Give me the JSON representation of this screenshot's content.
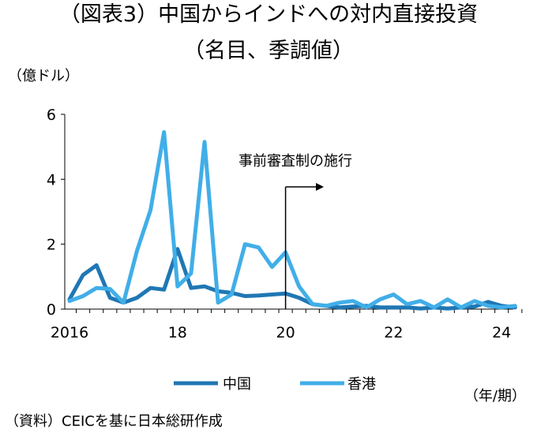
{
  "title_line1": "（図表3）中国からインドへの対内直接投資",
  "title_line2": "（名目、季調値）",
  "unit_label": "（億ドル）",
  "period_label": "（年/期）",
  "source_note": "（資料）CEICを基に日本総研作成",
  "chart_data": {
    "type": "line",
    "x": [
      "2016Q1",
      "2016Q2",
      "2016Q3",
      "2016Q4",
      "2017Q1",
      "2017Q2",
      "2017Q3",
      "2017Q4",
      "2018Q1",
      "2018Q2",
      "2018Q3",
      "2018Q4",
      "2019Q1",
      "2019Q2",
      "2019Q3",
      "2019Q4",
      "2020Q1",
      "2020Q2",
      "2020Q3",
      "2020Q4",
      "2021Q1",
      "2021Q2",
      "2021Q3",
      "2021Q4",
      "2022Q1",
      "2022Q2",
      "2022Q3",
      "2022Q4",
      "2023Q1",
      "2023Q2",
      "2023Q3",
      "2023Q4",
      "2024Q1",
      "2024Q2"
    ],
    "x_ticks": [
      {
        "x": "2016Q1",
        "label": "2016"
      },
      {
        "x": "2018Q1",
        "label": "18"
      },
      {
        "x": "2020Q1",
        "label": "20"
      },
      {
        "x": "2022Q1",
        "label": "22"
      },
      {
        "x": "2024Q1",
        "label": "24"
      }
    ],
    "y_ticks": [
      0,
      2,
      4,
      6
    ],
    "ylim": [
      0,
      6
    ],
    "series": [
      {
        "name": "中国",
        "color": "#1f77b4",
        "values": [
          0.3,
          1.05,
          1.35,
          0.35,
          0.2,
          0.35,
          0.65,
          0.6,
          1.85,
          0.65,
          0.7,
          0.55,
          0.5,
          0.4,
          0.42,
          0.45,
          0.48,
          0.35,
          0.15,
          0.1,
          0.05,
          0.08,
          0.1,
          0.05,
          0.05,
          0.05,
          0.02,
          0.05,
          0.02,
          0.05,
          0.08,
          0.22,
          0.1,
          0.05
        ]
      },
      {
        "name": "香港",
        "color": "#41aee8",
        "values": [
          0.25,
          0.4,
          0.65,
          0.62,
          0.2,
          1.8,
          3.05,
          5.45,
          0.7,
          1.1,
          5.15,
          0.2,
          0.45,
          2.0,
          1.9,
          1.3,
          1.75,
          0.7,
          0.15,
          0.1,
          0.2,
          0.25,
          0.05,
          0.3,
          0.45,
          0.15,
          0.25,
          0.05,
          0.3,
          0.05,
          0.25,
          0.1,
          0.05,
          0.1
        ]
      }
    ],
    "annotation": {
      "text": "事前審査制の施行",
      "x": "2020Q1"
    },
    "grid": false,
    "legend_position": "bottom"
  }
}
